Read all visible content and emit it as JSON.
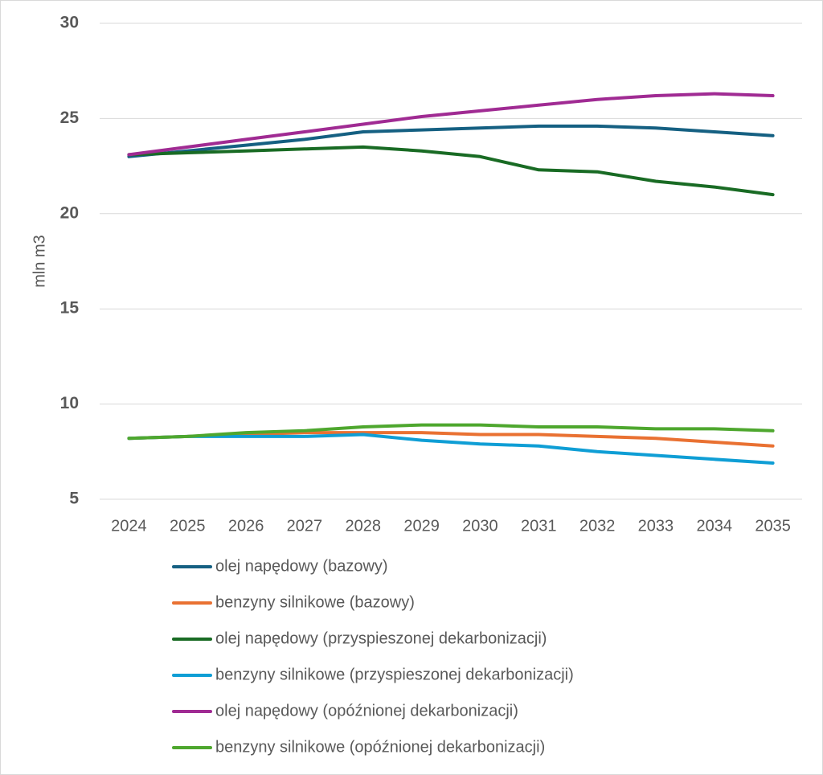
{
  "chart_data": {
    "type": "line",
    "y_label": "mln m3",
    "categories": [
      "2024",
      "2025",
      "2026",
      "2027",
      "2028",
      "2029",
      "2030",
      "2031",
      "2032",
      "2033",
      "2034",
      "2035"
    ],
    "series": [
      {
        "name": "olej napędowy (bazowy)",
        "color": "#156082",
        "values": [
          23.0,
          23.3,
          23.6,
          23.9,
          24.3,
          24.4,
          24.5,
          24.6,
          24.6,
          24.5,
          24.3,
          24.1
        ]
      },
      {
        "name": "benzyny silnikowe (bazowy)",
        "color": "#e97132",
        "values": [
          8.2,
          8.3,
          8.4,
          8.5,
          8.5,
          8.5,
          8.4,
          8.4,
          8.3,
          8.2,
          8.0,
          7.8
        ]
      },
      {
        "name": "olej napędowy (przyspieszonej dekarbonizacji)",
        "color": "#196b24",
        "values": [
          23.1,
          23.2,
          23.3,
          23.4,
          23.5,
          23.3,
          23.0,
          22.3,
          22.2,
          21.7,
          21.4,
          21.0
        ]
      },
      {
        "name": "benzyny silnikowe (przyspieszonej dekarbonizacji)",
        "color": "#0f9ed5",
        "values": [
          8.2,
          8.3,
          8.3,
          8.3,
          8.4,
          8.1,
          7.9,
          7.8,
          7.5,
          7.3,
          7.1,
          6.9
        ]
      },
      {
        "name": "olej napędowy (opóźnionej dekarbonizacji)",
        "color": "#a02b93",
        "values": [
          23.1,
          23.5,
          23.9,
          24.3,
          24.7,
          25.1,
          25.4,
          25.7,
          26.0,
          26.2,
          26.3,
          26.2
        ]
      },
      {
        "name": "benzyny silnikowe (opóźnionej dekarbonizacji)",
        "color": "#4ea72e",
        "values": [
          8.2,
          8.3,
          8.5,
          8.6,
          8.8,
          8.9,
          8.9,
          8.8,
          8.8,
          8.7,
          8.7,
          8.6
        ]
      }
    ],
    "ylim": [
      5,
      30
    ],
    "yticks": [
      5,
      10,
      15,
      20,
      25,
      30
    ],
    "grid": true,
    "legend": "bottom"
  }
}
